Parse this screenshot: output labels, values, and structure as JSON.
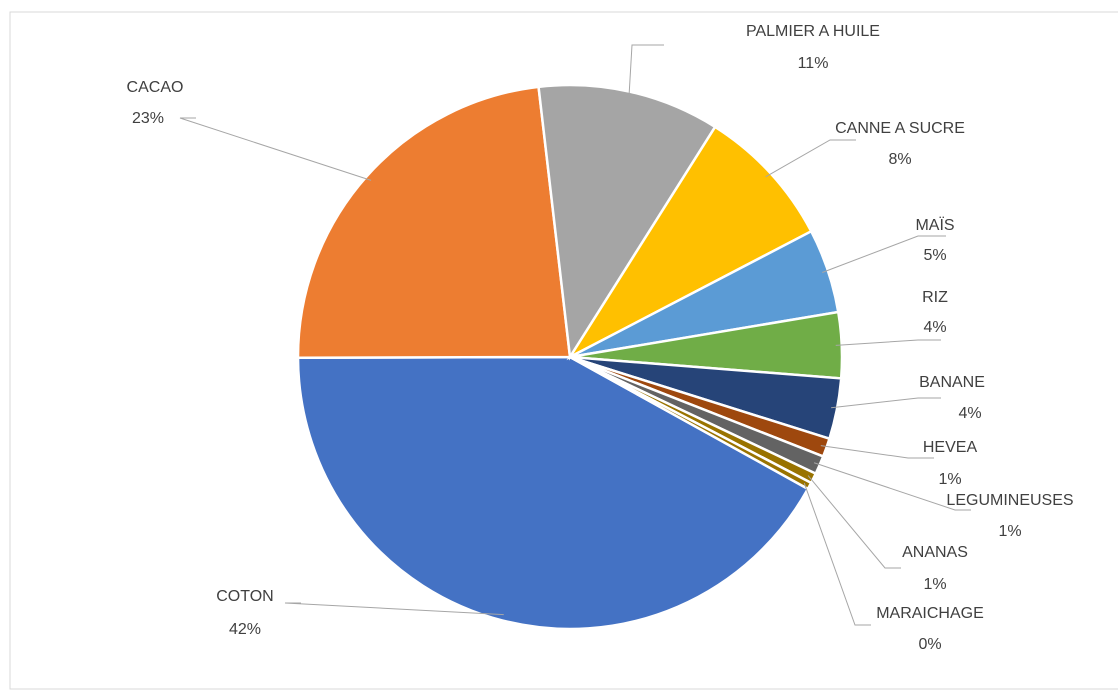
{
  "chart_data": {
    "type": "pie",
    "categories": [
      "COTON",
      "CACAO",
      "PALMIER A HUILE",
      "CANNE A SUCRE",
      "MAÏS",
      "RIZ",
      "BANANE",
      "HEVEA",
      "LEGUMINEUSES",
      "ANANAS",
      "MARAICHAGE"
    ],
    "values": [
      41.9,
      23.2,
      10.8,
      8.4,
      5.0,
      3.9,
      3.6,
      1.1,
      1.1,
      0.6,
      0.4
    ],
    "value_labels": [
      "42%",
      "23%",
      "11%",
      "8%",
      "5%",
      "4%",
      "4%",
      "1%",
      "1%",
      "1%",
      "0%"
    ],
    "colors": [
      "#4472c4",
      "#ed7d31",
      "#a5a5a5",
      "#ffc000",
      "#5b9bd5",
      "#70ad47",
      "#264478",
      "#9e480e",
      "#636363",
      "#997300",
      "#997300"
    ],
    "start_angle": 119
  }
}
